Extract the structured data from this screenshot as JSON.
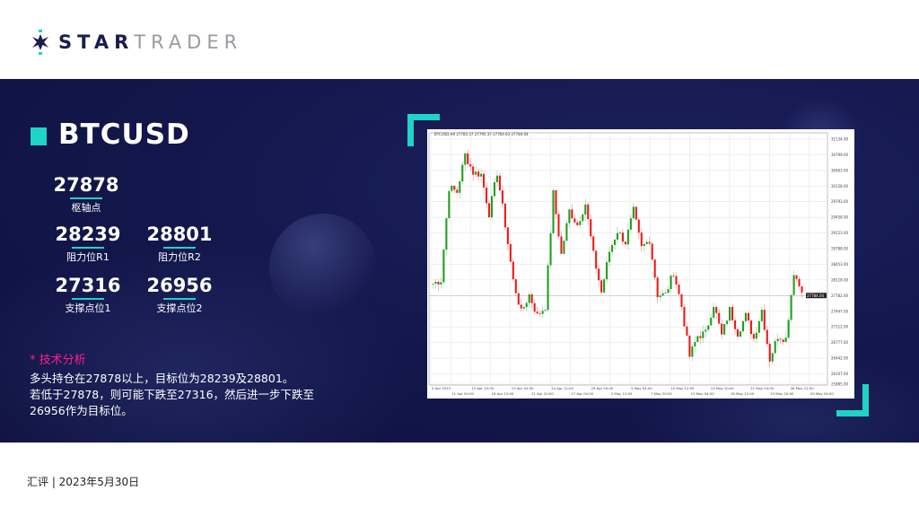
{
  "brand": {
    "bold": "STAR",
    "light": "TRADER",
    "accent": "#1fd3c6",
    "navy": "#1a1d4e"
  },
  "symbol": "BTCUSD",
  "levels": {
    "pivot": {
      "value": "27878",
      "label": "枢轴点"
    },
    "r1": {
      "value": "28239",
      "label": "阻力位R1"
    },
    "r2": {
      "value": "28801",
      "label": "阻力位R2"
    },
    "s1": {
      "value": "27316",
      "label": "支撑点位1"
    },
    "s2": {
      "value": "26956",
      "label": "支撑点位2"
    }
  },
  "analysis": {
    "heading": "* 技术分析",
    "lines": [
      "多头持仓在27878以上，目标位为28239及28801。",
      "若低于27878，则可能下跌至27316，然后进一步下跌至",
      "26956作为目标位。"
    ]
  },
  "footer": "汇评 | 2023年5月30日",
  "chart_data": {
    "type": "candlestick",
    "header": "BTCUSD,H4 27785.37 27795.37 27764.63 27784.04",
    "current_price": 27784.04,
    "ylim": [
      25885,
      31134
    ],
    "y_ticks": [
      31134,
      30799,
      30463,
      30128,
      29793,
      29458,
      29123,
      28788,
      28453,
      28118,
      27782,
      27447,
      27112,
      26777,
      26442,
      26107,
      25885
    ],
    "x_labels": [
      "5 Apr 2023",
      "11 Apr 04:00",
      "13 Apr 20:00",
      "18 Apr 12:00",
      "19 Apr 04:00",
      "21 Apr 20:00",
      "24 Apr 12:00",
      "27 Apr 04:00",
      "29 Apr 20:00",
      "2 May 12:00",
      "5 May 04:00",
      "7 May 20:00",
      "10 May 12:00",
      "13 May 04:00",
      "15 May 20:00",
      "18 May 12:00",
      "21 May 04:00",
      "23 May 20:00",
      "26 May 12:00",
      "29 May 04:00"
    ],
    "grid": true,
    "up_color": "#1f9e1f",
    "down_color": "#f01818",
    "closes": [
      28040,
      28115,
      30100,
      30000,
      30800,
      30420,
      30380,
      29540,
      30420,
      29300,
      28100,
      27420,
      27800,
      27350,
      27550,
      29970,
      28660,
      29600,
      29300,
      29750,
      28660,
      27850,
      28730,
      29170,
      28920,
      29600,
      28800,
      28980,
      27800,
      27800,
      28290,
      27550,
      26480,
      26920,
      26980,
      27600,
      26920,
      27480,
      26980,
      27350,
      26860,
      27480,
      26420,
      26920,
      26860,
      28290,
      27850
    ]
  }
}
